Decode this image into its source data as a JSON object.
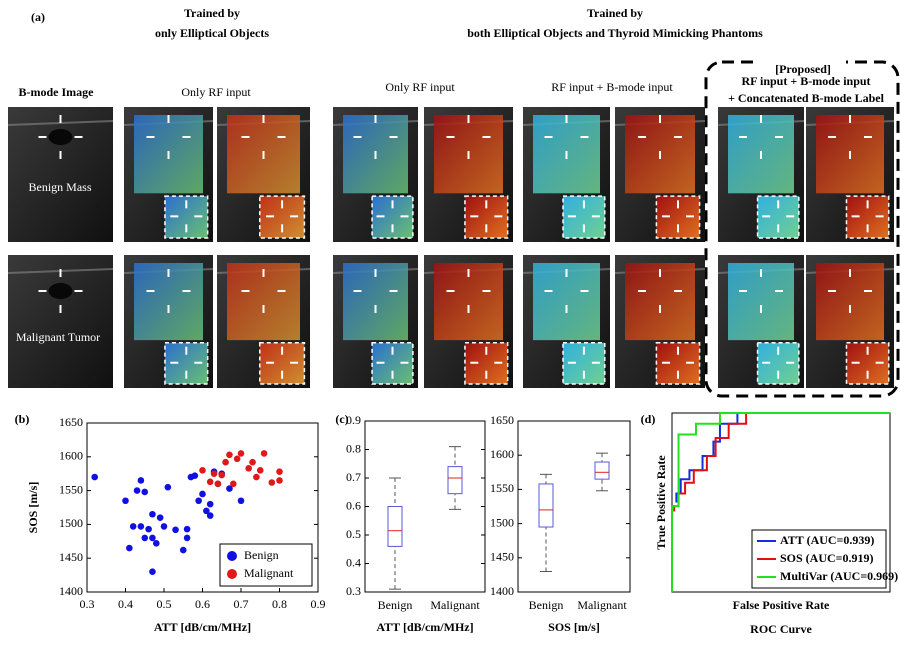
{
  "figure": {
    "panel_a": "(a)",
    "header_left": [
      "Trained by",
      "only Elliptical Objects"
    ],
    "header_right": [
      "Trained by",
      "both Elliptical Objects and Thyroid Mimicking Phantoms"
    ],
    "bmode": "B-mode Image",
    "col1": "Only RF input",
    "col2": "Only RF input",
    "col3": "RF input + B-mode input",
    "proposed": "[Proposed]",
    "col4": [
      "RF input + B-mode input",
      "+ Concatenated B-mode Label"
    ],
    "row1": "Benign Mass",
    "row2": "Malignant Tumor",
    "panel_b": "(b)",
    "panel_c": "(c)",
    "panel_d": "(d)"
  },
  "chart_data": [
    {
      "type": "scatter",
      "xlabel": "ATT [dB/cm/MHz]",
      "ylabel": "SOS [m/s]",
      "xlim": [
        0.3,
        0.9
      ],
      "ylim": [
        1400,
        1650
      ],
      "xticks": [
        0.3,
        0.4,
        0.5,
        0.6,
        0.7,
        0.8,
        0.9
      ],
      "yticks": [
        1400,
        1450,
        1500,
        1550,
        1600,
        1650
      ],
      "legend": "lower right",
      "series": [
        {
          "name": "Benign",
          "color": "#1010e0",
          "x": [
            0.32,
            0.4,
            0.41,
            0.42,
            0.43,
            0.44,
            0.45,
            0.44,
            0.45,
            0.46,
            0.47,
            0.47,
            0.47,
            0.48,
            0.49,
            0.5,
            0.51,
            0.53,
            0.55,
            0.56,
            0.56,
            0.57,
            0.58,
            0.59,
            0.6,
            0.61,
            0.62,
            0.62,
            0.63,
            0.64,
            0.65,
            0.67,
            0.7
          ],
          "values": [
            1570,
            1535,
            1465,
            1497,
            1550,
            1565,
            1548,
            1497,
            1480,
            1493,
            1515,
            1480,
            1430,
            1472,
            1510,
            1497,
            1555,
            1492,
            1462,
            1480,
            1493,
            1570,
            1572,
            1535,
            1545,
            1520,
            1530,
            1513,
            1578,
            1560,
            1575,
            1553,
            1535
          ]
        },
        {
          "name": "Malignant",
          "color": "#e01818",
          "x": [
            0.6,
            0.62,
            0.63,
            0.65,
            0.66,
            0.67,
            0.69,
            0.7,
            0.72,
            0.73,
            0.74,
            0.75,
            0.76,
            0.78,
            0.8,
            0.8,
            0.68,
            0.64
          ],
          "values": [
            1580,
            1563,
            1575,
            1573,
            1592,
            1603,
            1597,
            1605,
            1583,
            1592,
            1570,
            1580,
            1605,
            1562,
            1578,
            1565,
            1560,
            1560
          ]
        }
      ]
    },
    {
      "type": "box",
      "xlabel": "ATT [dB/cm/MHz]",
      "categories": [
        "Benign",
        "Malignant"
      ],
      "ylim": [
        0.3,
        0.9
      ],
      "yticks": [
        0.3,
        0.4,
        0.5,
        0.6,
        0.7,
        0.8,
        0.9
      ],
      "color": "#5a5ad8",
      "median_color": "#e02020",
      "boxes": [
        {
          "min": 0.31,
          "q1": 0.46,
          "median": 0.515,
          "q3": 0.6,
          "max": 0.7
        },
        {
          "min": 0.59,
          "q1": 0.645,
          "median": 0.7,
          "q3": 0.74,
          "max": 0.81
        }
      ]
    },
    {
      "type": "box",
      "xlabel": "SOS [m/s]",
      "categories": [
        "Benign",
        "Malignant"
      ],
      "ylim": [
        1400,
        1650
      ],
      "yticks": [
        1400,
        1450,
        1500,
        1550,
        1600,
        1650
      ],
      "color": "#5a5ad8",
      "median_color": "#e02020",
      "boxes": [
        {
          "min": 1430,
          "q1": 1495,
          "median": 1520,
          "q3": 1558,
          "max": 1572
        },
        {
          "min": 1548,
          "q1": 1565,
          "median": 1575,
          "q3": 1590,
          "max": 1603
        }
      ]
    },
    {
      "type": "roc",
      "title": "ROC Curve",
      "xlabel": "False Positive Rate",
      "ylabel": "True Positive Rate",
      "xlim": [
        0,
        1
      ],
      "ylim": [
        0,
        1
      ],
      "legend": "lower right",
      "series": [
        {
          "name": "ATT (AUC=0.939)",
          "color": "#1030e0",
          "x": [
            0.02,
            0.02,
            0.04,
            0.04,
            0.08,
            0.08,
            0.14,
            0.14,
            0.19,
            0.19,
            0.22,
            0.22,
            0.3,
            0.3,
            1
          ],
          "values": [
            0.5,
            0.55,
            0.55,
            0.63,
            0.63,
            0.68,
            0.68,
            0.76,
            0.76,
            0.84,
            0.84,
            0.94,
            0.94,
            1,
            1
          ]
        },
        {
          "name": "SOS (AUC=0.919)",
          "color": "#e01010",
          "x": [
            0.01,
            0.01,
            0.03,
            0.03,
            0.06,
            0.06,
            0.1,
            0.1,
            0.16,
            0.16,
            0.2,
            0.2,
            0.26,
            0.26,
            0.34,
            0.34,
            1
          ],
          "values": [
            0.45,
            0.48,
            0.48,
            0.55,
            0.55,
            0.61,
            0.61,
            0.68,
            0.68,
            0.76,
            0.76,
            0.86,
            0.86,
            0.94,
            0.94,
            1,
            1
          ]
        },
        {
          "name": "MultiVar (AUC=0.969)",
          "color": "#20e020",
          "x": [
            0,
            0,
            0.03,
            0.03,
            0.11,
            0.11,
            0.22,
            0.22,
            1
          ],
          "values": [
            0,
            0.48,
            0.48,
            0.88,
            0.88,
            0.94,
            0.94,
            1,
            1
          ]
        }
      ]
    }
  ]
}
